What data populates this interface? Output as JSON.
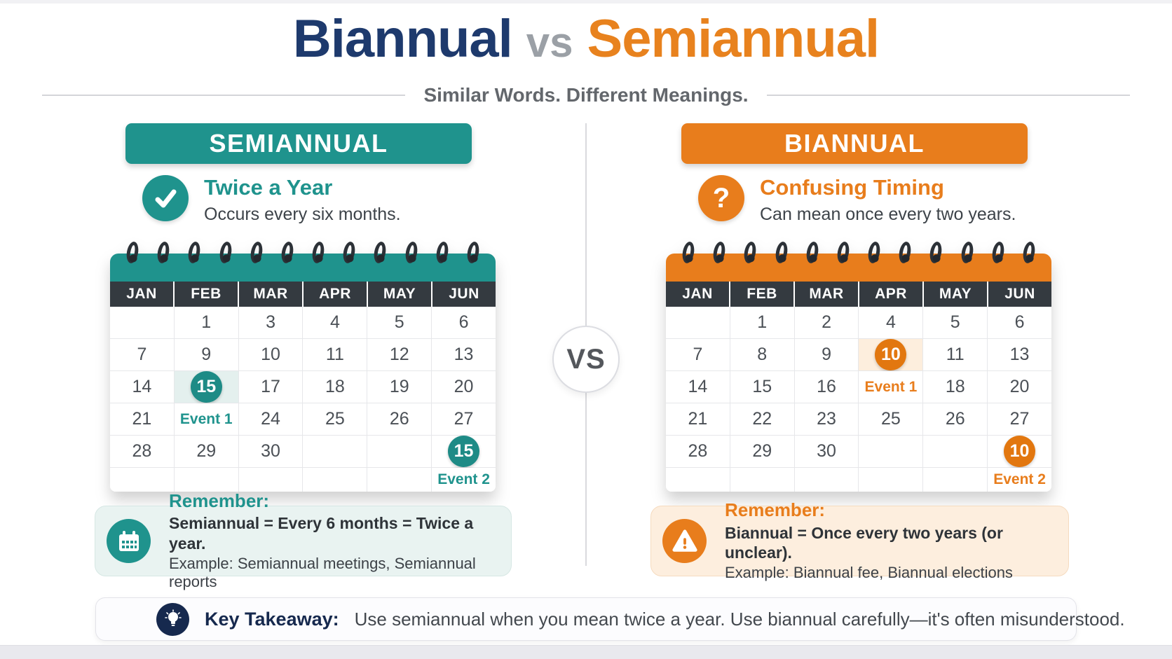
{
  "title": {
    "left": "Biannual",
    "vs": "vs",
    "right": "Semiannual",
    "subtitle": "Similar Words. Different Meanings."
  },
  "vs_badge": "VS",
  "calendar_months": [
    "JAN",
    "FEB",
    "MAR",
    "APR",
    "MAY",
    "JUN"
  ],
  "columns": [
    {
      "id": "semiannual",
      "banner": "SEMIANNUAL",
      "icon": "check-icon",
      "headline": "Twice a Year",
      "subline": "Occurs every six months.",
      "theme": {
        "accent": "#1f938d",
        "badge": "#1e8b86",
        "tint": "#e4f0ee",
        "box_bg": "#e9f3f1",
        "box_border": "#d6e7e4"
      },
      "calendar_rows": [
        [
          {
            "v": ""
          },
          {
            "v": "1"
          },
          {
            "v": "3"
          },
          {
            "v": "4"
          },
          {
            "v": "5"
          },
          {
            "v": "6"
          }
        ],
        [
          {
            "v": "7"
          },
          {
            "v": "9"
          },
          {
            "v": "10"
          },
          {
            "v": "11"
          },
          {
            "v": "12"
          },
          {
            "v": "13"
          }
        ],
        [
          {
            "v": "14"
          },
          {
            "v": "15",
            "kind": "badge",
            "hl": true
          },
          {
            "v": "17"
          },
          {
            "v": "18"
          },
          {
            "v": "19"
          },
          {
            "v": "20"
          }
        ],
        [
          {
            "v": "21"
          },
          {
            "v": "Event 1",
            "kind": "event"
          },
          {
            "v": "24"
          },
          {
            "v": "25"
          },
          {
            "v": "26"
          },
          {
            "v": "27"
          }
        ],
        [
          {
            "v": "28"
          },
          {
            "v": "29"
          },
          {
            "v": "30"
          },
          {
            "v": ""
          },
          {
            "v": ""
          },
          {
            "v": "15",
            "kind": "badge"
          }
        ],
        [
          {
            "v": ""
          },
          {
            "v": ""
          },
          {
            "v": ""
          },
          {
            "v": ""
          },
          {
            "v": ""
          },
          {
            "v": "Event 2",
            "kind": "event"
          }
        ]
      ],
      "remember": {
        "label": "Remember:",
        "line1": "Semiannual = Every 6 months = Twice a year.",
        "line2": "Example: Semiannual meetings, Semiannual reports",
        "icon": "calendar-icon"
      }
    },
    {
      "id": "biannual",
      "banner": "BIANNUAL",
      "icon": "question-icon",
      "headline": "Confusing Timing",
      "subline": "Can mean once every two years.",
      "theme": {
        "accent": "#e87d1c",
        "badge": "#e2770f",
        "tint": "#fdeedd",
        "box_bg": "#fdeede",
        "box_border": "#f5dbbf"
      },
      "calendar_rows": [
        [
          {
            "v": ""
          },
          {
            "v": "1"
          },
          {
            "v": "2"
          },
          {
            "v": "4"
          },
          {
            "v": "5"
          },
          {
            "v": "6"
          }
        ],
        [
          {
            "v": "7"
          },
          {
            "v": "8"
          },
          {
            "v": "9"
          },
          {
            "v": "10",
            "kind": "badge",
            "hl": true
          },
          {
            "v": "11"
          },
          {
            "v": "13"
          }
        ],
        [
          {
            "v": "14"
          },
          {
            "v": "15"
          },
          {
            "v": "16"
          },
          {
            "v": "Event 1",
            "kind": "event"
          },
          {
            "v": "18"
          },
          {
            "v": "20"
          }
        ],
        [
          {
            "v": "21"
          },
          {
            "v": "22"
          },
          {
            "v": "23"
          },
          {
            "v": "25"
          },
          {
            "v": "26"
          },
          {
            "v": "27"
          }
        ],
        [
          {
            "v": "28"
          },
          {
            "v": "29"
          },
          {
            "v": "30"
          },
          {
            "v": ""
          },
          {
            "v": ""
          },
          {
            "v": "10",
            "kind": "badge"
          }
        ],
        [
          {
            "v": ""
          },
          {
            "v": ""
          },
          {
            "v": ""
          },
          {
            "v": ""
          },
          {
            "v": ""
          },
          {
            "v": "Event 2",
            "kind": "event"
          }
        ]
      ],
      "remember": {
        "label": "Remember:",
        "line1": "Biannual = Once every two years (or unclear).",
        "line2": "Example: Biannual fee, Biannual elections",
        "icon": "warning-icon"
      }
    }
  ],
  "takeaway": {
    "icon": "lightbulb-icon",
    "label": "Key Takeaway:",
    "text": "Use semiannual when you mean twice a year. Use biannual carefully—it's often misunderstood."
  },
  "colors": {
    "title_navy": "#1e3a6d",
    "title_orange": "#e8821e",
    "vs_gray": "#9ba0a6",
    "subtitle_gray": "#63676c",
    "calendar_header_dark": "#343a40",
    "takeaway_navy": "#16294e",
    "teal_accent": "#1f938d",
    "orange_accent": "#e87d1c"
  }
}
